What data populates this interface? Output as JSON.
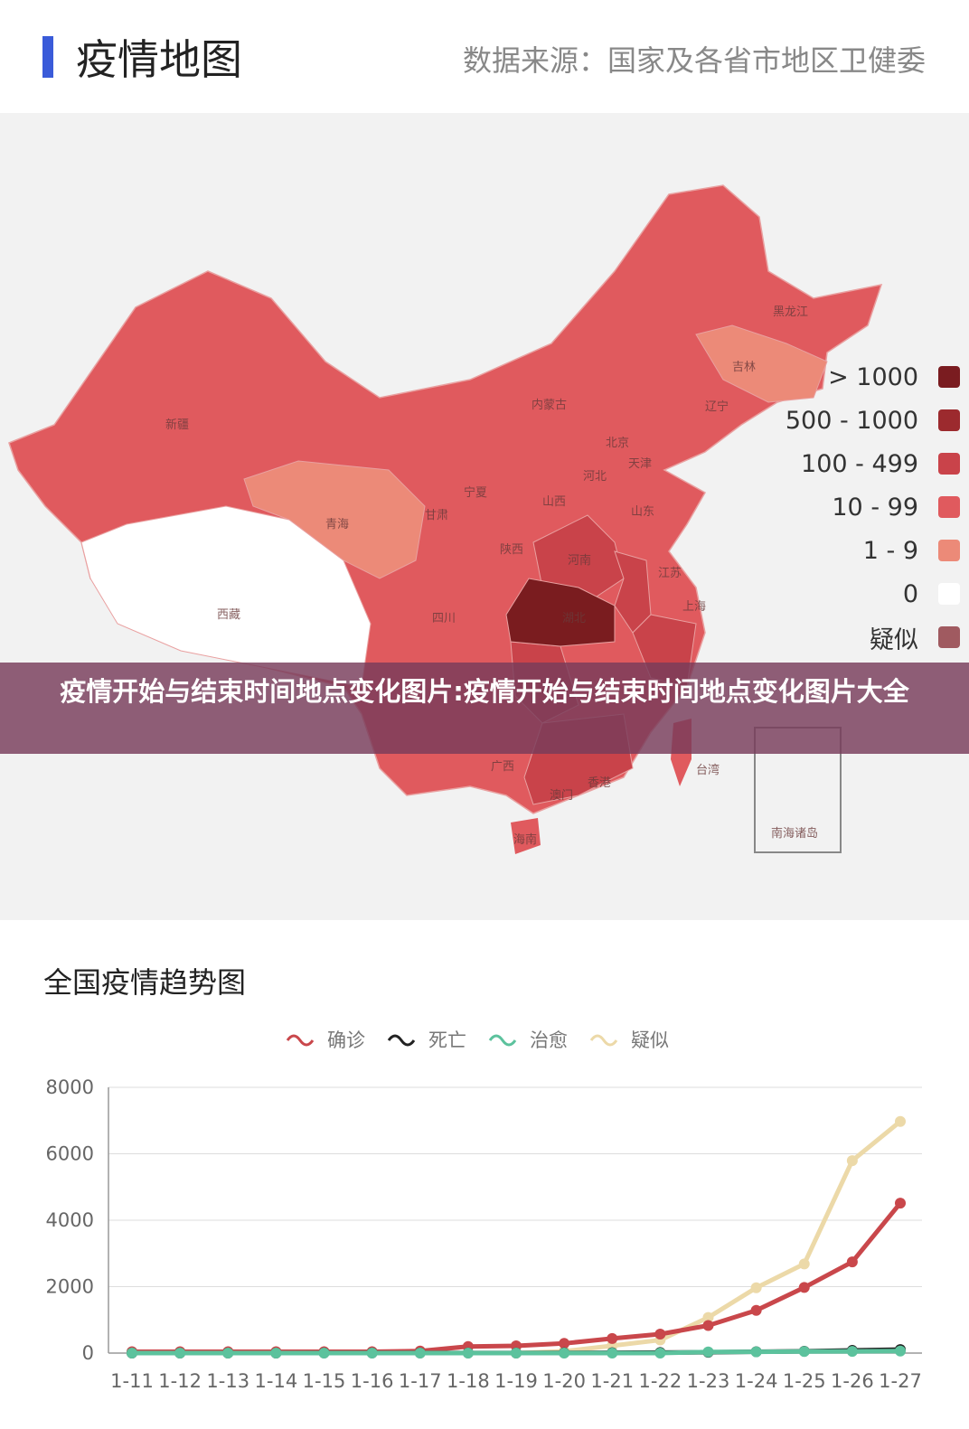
{
  "header": {
    "title": "疫情地图",
    "source": "数据来源：国家及各省市地区卫健委"
  },
  "map": {
    "provinces": [
      "新疆",
      "西藏",
      "青海",
      "甘肃",
      "内蒙古",
      "黑龙江",
      "吉林",
      "辽宁",
      "北京",
      "天津",
      "河北",
      "山西",
      "山东",
      "宁夏",
      "陕西",
      "河南",
      "江苏",
      "上海",
      "湖北",
      "四川",
      "台湾",
      "广西",
      "香港",
      "澳门",
      "海南",
      "南海诸岛"
    ],
    "legend": [
      {
        "label": "> 1000",
        "color": "#7a1c20"
      },
      {
        "label": "500 - 1000",
        "color": "#9c2a2e"
      },
      {
        "label": "100 - 499",
        "color": "#c9434a"
      },
      {
        "label": "10 - 99",
        "color": "#e05a5e"
      },
      {
        "label": "1 - 9",
        "color": "#ec8a78"
      },
      {
        "label": "0",
        "color": "#ffffff"
      },
      {
        "label": "疑似",
        "color": "#a05a60"
      }
    ]
  },
  "banner": "疫情开始与结束时间地点变化图片:疫情开始与结束时间地点变化图片大全",
  "chart_data": {
    "type": "line",
    "title": "全国疫情趋势图",
    "categories": [
      "1-11",
      "1-12",
      "1-13",
      "1-14",
      "1-15",
      "1-16",
      "1-17",
      "1-18",
      "1-19",
      "1-20",
      "1-21",
      "1-22",
      "1-23",
      "1-24",
      "1-25",
      "1-26",
      "1-27"
    ],
    "ylim": [
      0,
      8000
    ],
    "yticks": [
      0,
      2000,
      4000,
      6000,
      8000
    ],
    "grid": true,
    "legend_position": "top",
    "series": [
      {
        "name": "确诊",
        "color": "#c9474b",
        "values": [
          41,
          41,
          41,
          41,
          41,
          41,
          62,
          198,
          218,
          291,
          440,
          571,
          830,
          1287,
          1975,
          2744,
          4515
        ]
      },
      {
        "name": "死亡",
        "color": "#222222",
        "values": [
          1,
          1,
          1,
          1,
          2,
          2,
          2,
          3,
          3,
          6,
          9,
          17,
          25,
          41,
          56,
          80,
          106
        ]
      },
      {
        "name": "治愈",
        "color": "#5cc29d",
        "values": [
          0,
          0,
          0,
          0,
          0,
          0,
          0,
          0,
          0,
          0,
          0,
          0,
          34,
          38,
          49,
          51,
          60
        ]
      },
      {
        "name": "疑似",
        "color": "#ecd9a8",
        "values": [
          null,
          null,
          null,
          null,
          null,
          null,
          null,
          null,
          0,
          54,
          220,
          393,
          1072,
          1965,
          2684,
          5794,
          6973
        ]
      }
    ]
  }
}
